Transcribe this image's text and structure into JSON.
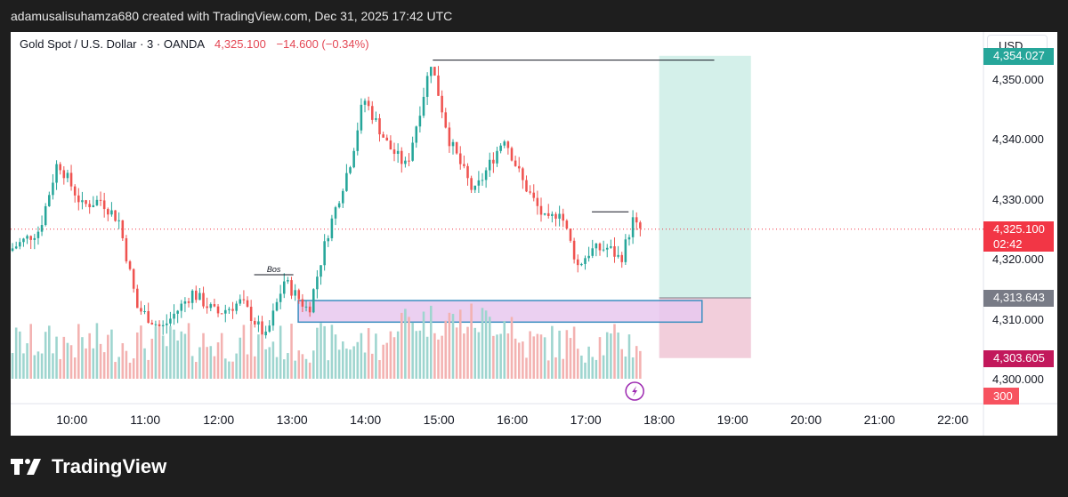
{
  "header": {
    "attribution": "adamusalisuhamza680 created with TradingView.com, Dec 31, 2025 17:42 UTC"
  },
  "legend": {
    "symbol": "Gold Spot / U.S. Dollar · 3 · OANDA",
    "last": "4,325.100",
    "change": "−14.600 (−0.34%)"
  },
  "currency": "USD",
  "footer": {
    "brand": "TradingView",
    "logo_icon": "tradingview-logo-icon"
  },
  "colors": {
    "up": "#26a69a",
    "down": "#ef5350",
    "vol_up": "#9ed5cf",
    "vol_down": "#f3b2b1",
    "target_zone": "#d4f0ea",
    "stop_zone": "#f2cedb",
    "order_block": "#e7c8ef",
    "order_block_border": "#3b8fc0"
  },
  "chart_data": {
    "type": "candlestick",
    "title": "Gold Spot / U.S. Dollar · 3 · OANDA",
    "timeframe": "3",
    "y_ticks": [
      "4,300.000",
      "4,310.000",
      "4,320.000",
      "4,330.000",
      "4,340.000",
      "4,350.000"
    ],
    "x_ticks": [
      "10:00",
      "11:00",
      "12:00",
      "13:00",
      "14:00",
      "15:00",
      "16:00",
      "17:00",
      "18:00",
      "19:00",
      "20:00",
      "21:00",
      "22:00"
    ],
    "ylim": [
      4296,
      4358
    ],
    "xlim": [
      "09:10",
      "22:25"
    ],
    "price_tags": [
      {
        "label": "4,354.027",
        "value": 4354.027,
        "color": "#26a69a"
      },
      {
        "label": "4,325.100",
        "sublabel": "02:42",
        "value": 4325.1,
        "color": "#f23645"
      },
      {
        "label": "4,313.643",
        "value": 4313.643,
        "color": "#787b86"
      },
      {
        "label": "4,303.605",
        "value": 4303.605,
        "color": "#c2185b"
      }
    ],
    "volume_tag": {
      "label": "300",
      "color": "#f7525f"
    },
    "annotations": [
      {
        "type": "text",
        "text": "Bos",
        "time": "12:45",
        "price": 4317.5
      },
      {
        "type": "hline",
        "label": "swing high",
        "from": "14:55",
        "to": "18:45",
        "price": 4353.3
      },
      {
        "type": "hline",
        "label": "local high",
        "from": "17:05",
        "to": "17:35",
        "price": 4328.0
      },
      {
        "type": "rect",
        "label": "order block",
        "from": "13:05",
        "to": "18:35",
        "low": 4309.6,
        "high": 4313.2
      },
      {
        "type": "long_position",
        "from": "18:00",
        "to": "19:15",
        "entry": 4313.643,
        "target": 4354.027,
        "stop": 4303.605
      }
    ],
    "ohlc_keypoints": [
      {
        "time": "09:10",
        "price": 4321.5
      },
      {
        "time": "09:35",
        "price": 4325.0
      },
      {
        "time": "09:50",
        "price": 4336.5
      },
      {
        "time": "10:10",
        "price": 4329.0
      },
      {
        "time": "10:25",
        "price": 4330.0
      },
      {
        "time": "10:40",
        "price": 4326.5
      },
      {
        "time": "10:55",
        "price": 4312.0
      },
      {
        "time": "11:15",
        "price": 4308.5
      },
      {
        "time": "11:40",
        "price": 4314.5
      },
      {
        "time": "12:00",
        "price": 4311.0
      },
      {
        "time": "12:20",
        "price": 4313.0
      },
      {
        "time": "12:40",
        "price": 4307.0
      },
      {
        "time": "12:55",
        "price": 4316.5
      },
      {
        "time": "13:15",
        "price": 4311.5
      },
      {
        "time": "13:30",
        "price": 4324.0
      },
      {
        "time": "13:50",
        "price": 4337.0
      },
      {
        "time": "14:00",
        "price": 4347.0
      },
      {
        "time": "14:20",
        "price": 4339.0
      },
      {
        "time": "14:35",
        "price": 4335.5
      },
      {
        "time": "14:55",
        "price": 4353.0
      },
      {
        "time": "15:10",
        "price": 4340.0
      },
      {
        "time": "15:30",
        "price": 4331.0
      },
      {
        "time": "15:55",
        "price": 4340.5
      },
      {
        "time": "16:10",
        "price": 4333.0
      },
      {
        "time": "16:30",
        "price": 4326.0
      },
      {
        "time": "16:40",
        "price": 4328.5
      },
      {
        "time": "16:55",
        "price": 4319.0
      },
      {
        "time": "17:05",
        "price": 4321.5
      },
      {
        "time": "17:20",
        "price": 4322.0
      },
      {
        "time": "17:30",
        "price": 4320.0
      },
      {
        "time": "17:40",
        "price": 4326.5
      },
      {
        "time": "17:44",
        "price": 4325.1
      }
    ]
  }
}
